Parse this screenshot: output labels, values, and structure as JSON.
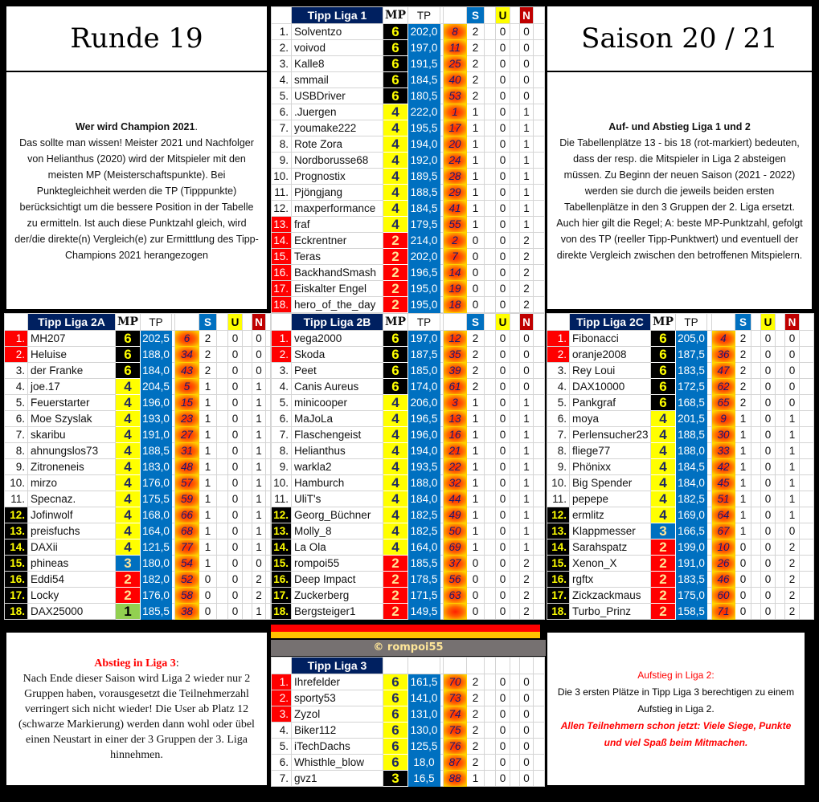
{
  "runde": {
    "title": "Runde 19"
  },
  "saison": {
    "title": "Saison 20 / 21"
  },
  "champion": {
    "heading": "Wer wird Champion 2021",
    "heading_suffix": ".",
    "body": "Das sollte man wissen!  Meister 2021 und Nachfolger von Helianthus (2020) wird der Mitspieler mit den meisten MP (Meisterschaftspunkte). Bei Punktegleichheit werden die TP (Tipppunkte) berücksichtigt um die bessere Position in der Tabelle zu ermitteln. Ist auch diese Punktzahl gleich, wird der/die direkte(n) Vergleich(e) zur Ermitttlung des Tipp-Champions 2021 herangezogen"
  },
  "aufabstieg": {
    "heading": "Auf- und Abstieg Liga 1 und 2",
    "body": "Die Tabellenplätze 13 - bis 18 (rot-markiert) bedeuten, dass der resp. die Mitspieler in Liga 2 absteigen müssen. Zu Beginn der neuen Saison (2021 - 2022) werden sie durch die jeweils beiden ersten Tabellenplätze in den 3 Gruppen der 2. Liga ersetzt. Auch hier gilt die Regel; A: beste MP-Punktzahl, gefolgt von des TP (reeller Tipp-Punktwert) und eventuell der direkte Vergleich zwischen den betroffenen Mitspielern."
  },
  "abstieg3": {
    "heading": "Abstieg in Liga 3",
    "heading_suffix": ":",
    "body": "Nach Ende dieser Saison wird Liga 2 wieder nur 2 Gruppen haben, vorausgesetzt die Teilnehmerzahl verringert sich nicht wieder! Die User ab Platz 12 (schwarze Markierung) werden dann wohl oder übel einen Neustart in einer der 3 Gruppen der 3. Liga hinnehmen."
  },
  "aufstieg2": {
    "heading": "Aufstieg in Liga 2:",
    "line1": "Die 3 ersten Plätze  in Tipp Liga 3  berechtigen zu einem",
    "line2": "Aufstieg in Liga 2.",
    "wish": "Allen Teilnehmern schon jetzt: Viele Siege, Punkte und viel Spaß beim Mitmachen."
  },
  "copyright": "© rompoi55",
  "colors": {
    "navy": "#002060",
    "tp_blue": "#0070c0",
    "relegation_red": "#ff0000",
    "mp_black": "#000000",
    "mp_yellow": "#ffff00",
    "stripe_red": "#ff0000",
    "stripe_orange": "#ffc000"
  },
  "headers": {
    "mp": "MP",
    "tp": "TP",
    "s": "S",
    "u": "U",
    "n": "N"
  },
  "mp_styles": {
    "liga12": {
      "6": "black",
      "4": "yellow",
      "3": "blue",
      "2": "red",
      "1": "green"
    },
    "liga3": {
      "6": "yellow",
      "3": "black"
    }
  },
  "tables": {
    "liga1": {
      "title": "Tipp Liga 1",
      "show_cols": true,
      "mp_style": "liga12",
      "red_ranks": [
        13,
        14,
        15,
        16,
        17,
        18
      ],
      "black_ranks": [],
      "rows": [
        [
          "1.",
          "Solventzo",
          "6",
          "202,0",
          "8",
          "2",
          "0",
          "0"
        ],
        [
          "2.",
          "voivod",
          "6",
          "197,0",
          "11",
          "2",
          "0",
          "0"
        ],
        [
          "3.",
          "Kalle8",
          "6",
          "191,5",
          "25",
          "2",
          "0",
          "0"
        ],
        [
          "4.",
          "smmail",
          "6",
          "184,5",
          "40",
          "2",
          "0",
          "0"
        ],
        [
          "5.",
          "USBDriver",
          "6",
          "180,5",
          "53",
          "2",
          "0",
          "0"
        ],
        [
          "6.",
          ".Juergen",
          "4",
          "222,0",
          "1",
          "1",
          "0",
          "1"
        ],
        [
          "7.",
          "youmake222",
          "4",
          "195,5",
          "17",
          "1",
          "0",
          "1"
        ],
        [
          "8.",
          "Rote Zora",
          "4",
          "194,0",
          "20",
          "1",
          "0",
          "1"
        ],
        [
          "9.",
          "Nordborusse68",
          "4",
          "192,0",
          "24",
          "1",
          "0",
          "1"
        ],
        [
          "10.",
          "Prognostix",
          "4",
          "189,5",
          "28",
          "1",
          "0",
          "1"
        ],
        [
          "11.",
          "Pjöngjang",
          "4",
          "188,5",
          "29",
          "1",
          "0",
          "1"
        ],
        [
          "12.",
          "maxperformance",
          "4",
          "184,5",
          "41",
          "1",
          "0",
          "1"
        ],
        [
          "13.",
          "fraf",
          "4",
          "179,5",
          "55",
          "1",
          "0",
          "1"
        ],
        [
          "14.",
          "Eckrentner",
          "2",
          "214,0",
          "2",
          "0",
          "0",
          "2"
        ],
        [
          "15.",
          "Teras",
          "2",
          "202,0",
          "7",
          "0",
          "0",
          "2"
        ],
        [
          "16.",
          "BackhandSmash",
          "2",
          "196,5",
          "14",
          "0",
          "0",
          "2"
        ],
        [
          "17.",
          "Eiskalter Engel",
          "2",
          "195,0",
          "19",
          "0",
          "0",
          "2"
        ],
        [
          "18.",
          "hero_of_the_day",
          "2",
          "195,0",
          "18",
          "0",
          "0",
          "2"
        ]
      ]
    },
    "liga2a": {
      "title": "Tipp Liga 2A",
      "show_cols": true,
      "mp_style": "liga12",
      "red_ranks": [
        1,
        2
      ],
      "black_ranks": [
        12,
        13,
        14,
        15,
        16,
        17,
        18
      ],
      "rows": [
        [
          "1.",
          "MH207",
          "6",
          "202,5",
          "6",
          "2",
          "0",
          "0"
        ],
        [
          "2.",
          "Heluise",
          "6",
          "188,0",
          "34",
          "2",
          "0",
          "0"
        ],
        [
          "3.",
          "der Franke",
          "6",
          "184,0",
          "43",
          "2",
          "0",
          "0"
        ],
        [
          "4.",
          "joe.17",
          "4",
          "204,5",
          "5",
          "1",
          "0",
          "1"
        ],
        [
          "5.",
          "Feuerstarter",
          "4",
          "196,0",
          "15",
          "1",
          "0",
          "1"
        ],
        [
          "6.",
          "Moe Szyslak",
          "4",
          "193,0",
          "23",
          "1",
          "0",
          "1"
        ],
        [
          "7.",
          "skaribu",
          "4",
          "191,0",
          "27",
          "1",
          "0",
          "1"
        ],
        [
          "8.",
          "ahnungslos73",
          "4",
          "188,5",
          "31",
          "1",
          "0",
          "1"
        ],
        [
          "9.",
          "Zitroneneis",
          "4",
          "183,0",
          "48",
          "1",
          "0",
          "1"
        ],
        [
          "10.",
          "mirzo",
          "4",
          "176,0",
          "57",
          "1",
          "0",
          "1"
        ],
        [
          "11.",
          "Specnaz.",
          "4",
          "175,5",
          "59",
          "1",
          "0",
          "1"
        ],
        [
          "12.",
          "Jofinwolf",
          "4",
          "168,0",
          "66",
          "1",
          "0",
          "1"
        ],
        [
          "13.",
          "preisfuchs",
          "4",
          "164,0",
          "68",
          "1",
          "0",
          "1"
        ],
        [
          "14.",
          "DAXii",
          "4",
          "121,5",
          "77",
          "1",
          "0",
          "1"
        ],
        [
          "15.",
          "phineas",
          "3",
          "180,0",
          "54",
          "1",
          "0",
          "0"
        ],
        [
          "16.",
          "Eddi54",
          "2",
          "182,0",
          "52",
          "0",
          "0",
          "2"
        ],
        [
          "17.",
          "Locky",
          "2",
          "176,0",
          "58",
          "0",
          "0",
          "2"
        ],
        [
          "18.",
          "DAX25000",
          "1",
          "185,5",
          "38",
          "0",
          "0",
          "1"
        ]
      ]
    },
    "liga2b": {
      "title": "Tipp Liga 2B",
      "show_cols": true,
      "mp_style": "liga12",
      "red_ranks": [
        1,
        2
      ],
      "black_ranks": [
        12,
        13,
        14,
        15,
        16,
        17,
        18
      ],
      "rows": [
        [
          "1.",
          "vega2000",
          "6",
          "197,0",
          "12",
          "2",
          "0",
          "0"
        ],
        [
          "2.",
          "Skoda",
          "6",
          "187,5",
          "35",
          "2",
          "0",
          "0"
        ],
        [
          "3.",
          "Peet",
          "6",
          "185,0",
          "39",
          "2",
          "0",
          "0"
        ],
        [
          "4.",
          "Canis Aureus",
          "6",
          "174,0",
          "61",
          "2",
          "0",
          "0"
        ],
        [
          "5.",
          "minicooper",
          "4",
          "206,0",
          "3",
          "1",
          "0",
          "1"
        ],
        [
          "6.",
          "MaJoLa",
          "4",
          "196,5",
          "13",
          "1",
          "0",
          "1"
        ],
        [
          "7.",
          "Flaschengeist",
          "4",
          "196,0",
          "16",
          "1",
          "0",
          "1"
        ],
        [
          "8.",
          "Helianthus",
          "4",
          "194,0",
          "21",
          "1",
          "0",
          "1"
        ],
        [
          "9.",
          "warkla2",
          "4",
          "193,5",
          "22",
          "1",
          "0",
          "1"
        ],
        [
          "10.",
          "Hamburch",
          "4",
          "188,0",
          "32",
          "1",
          "0",
          "1"
        ],
        [
          "11.",
          "UliT's",
          "4",
          "184,0",
          "44",
          "1",
          "0",
          "1"
        ],
        [
          "12.",
          "Georg_Büchner",
          "4",
          "182,5",
          "49",
          "1",
          "0",
          "1"
        ],
        [
          "13.",
          "Molly_8",
          "4",
          "182,5",
          "50",
          "1",
          "0",
          "1"
        ],
        [
          "14.",
          "La Ola",
          "4",
          "164,0",
          "69",
          "1",
          "0",
          "1"
        ],
        [
          "15.",
          "rompoi55",
          "2",
          "185,5",
          "37",
          "0",
          "0",
          "2"
        ],
        [
          "16.",
          "Deep Impact",
          "2",
          "178,5",
          "56",
          "0",
          "0",
          "2"
        ],
        [
          "17.",
          "Zuckerberg",
          "2",
          "171,5",
          "63",
          "0",
          "0",
          "2"
        ],
        [
          "18.",
          "Bergsteiger1",
          "2",
          "149,5",
          "",
          "0",
          "0",
          "2"
        ]
      ]
    },
    "liga2c": {
      "title": "Tipp Liga 2C",
      "show_cols": true,
      "mp_style": "liga12",
      "red_ranks": [
        1,
        2
      ],
      "black_ranks": [
        12,
        13,
        14,
        15,
        16,
        17,
        18
      ],
      "rows": [
        [
          "1.",
          "Fibonacci",
          "6",
          "205,0",
          "4",
          "2",
          "0",
          "0"
        ],
        [
          "2.",
          "oranje2008",
          "6",
          "187,5",
          "36",
          "2",
          "0",
          "0"
        ],
        [
          "3.",
          "Rey Loui",
          "6",
          "183,5",
          "47",
          "2",
          "0",
          "0"
        ],
        [
          "4.",
          "DAX10000",
          "6",
          "172,5",
          "62",
          "2",
          "0",
          "0"
        ],
        [
          "5.",
          "Pankgraf",
          "6",
          "168,5",
          "65",
          "2",
          "0",
          "0"
        ],
        [
          "6.",
          "moya",
          "4",
          "201,5",
          "9",
          "1",
          "0",
          "1"
        ],
        [
          "7.",
          "Perlensucher23",
          "4",
          "188,5",
          "30",
          "1",
          "0",
          "1"
        ],
        [
          "8.",
          "fliege77",
          "4",
          "188,0",
          "33",
          "1",
          "0",
          "1"
        ],
        [
          "9.",
          "Phönixx",
          "4",
          "184,5",
          "42",
          "1",
          "0",
          "1"
        ],
        [
          "10.",
          "Big Spender",
          "4",
          "184,0",
          "45",
          "1",
          "0",
          "1"
        ],
        [
          "11.",
          "pepepe",
          "4",
          "182,5",
          "51",
          "1",
          "0",
          "1"
        ],
        [
          "12.",
          "ermlitz",
          "4",
          "169,0",
          "64",
          "1",
          "0",
          "1"
        ],
        [
          "13.",
          "Klappmesser",
          "3",
          "166,5",
          "67",
          "1",
          "0",
          "0"
        ],
        [
          "14.",
          "Sarahspatz",
          "2",
          "199,0",
          "10",
          "0",
          "0",
          "2"
        ],
        [
          "15.",
          "Xenon_X",
          "2",
          "191,0",
          "26",
          "0",
          "0",
          "2"
        ],
        [
          "16.",
          "rgftx",
          "2",
          "183,5",
          "46",
          "0",
          "0",
          "2"
        ],
        [
          "17.",
          "Zickzackmaus",
          "2",
          "175,0",
          "60",
          "0",
          "0",
          "2"
        ],
        [
          "18.",
          "Turbo_Prinz",
          "2",
          "158,5",
          "71",
          "0",
          "0",
          "2"
        ]
      ]
    },
    "liga3": {
      "title": "Tipp Liga 3",
      "show_cols": false,
      "mp_style": "liga3",
      "red_ranks": [
        1,
        2,
        3
      ],
      "black_ranks": [],
      "rows": [
        [
          "1.",
          "Ihrefelder",
          "6",
          "161,5",
          "70",
          "2",
          "0",
          "0"
        ],
        [
          "2.",
          "sporty53",
          "6",
          "141,0",
          "73",
          "2",
          "0",
          "0"
        ],
        [
          "3.",
          "Zyzol",
          "6",
          "131,0",
          "74",
          "2",
          "0",
          "0"
        ],
        [
          "4.",
          "Biker112",
          "6",
          "130,0",
          "75",
          "2",
          "0",
          "0"
        ],
        [
          "5.",
          "iTechDachs",
          "6",
          "125,5",
          "76",
          "2",
          "0",
          "0"
        ],
        [
          "6.",
          "Whisthle_blow",
          "6",
          "18,0",
          "87",
          "2",
          "0",
          "0"
        ],
        [
          "7.",
          "gvz1",
          "3",
          "16,5",
          "88",
          "1",
          "0",
          "0"
        ]
      ]
    }
  }
}
